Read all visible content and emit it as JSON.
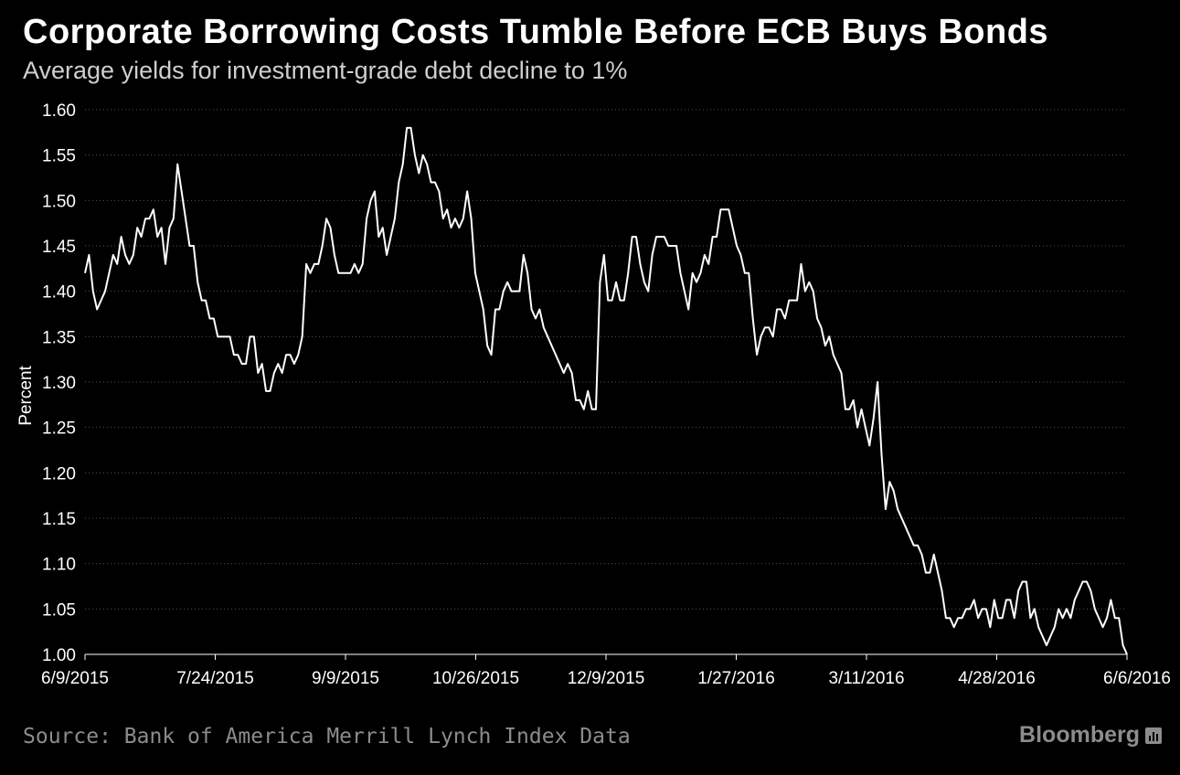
{
  "colors": {
    "background": "#000000",
    "line": "#ffffff",
    "grid": "#555555",
    "muted": "#8c8c8c"
  },
  "header": {
    "title": "Corporate Borrowing Costs Tumble Before ECB Buys Bonds",
    "subtitle": "Average yields for investment-grade debt decline to 1%"
  },
  "footer": {
    "source": "Source: Bank of America Merrill Lynch Index Data",
    "brand": "Bloomberg",
    "brand_icon": "bloomberg-terminal-icon"
  },
  "chart_data": {
    "type": "line",
    "title": "Corporate Borrowing Costs Tumble Before ECB Buys Bonds",
    "subtitle": "Average yields for investment-grade debt decline to 1%",
    "xlabel": "",
    "ylabel": "Percent",
    "ylim": [
      1.0,
      1.6
    ],
    "yticks": [
      "1.00",
      "1.05",
      "1.10",
      "1.15",
      "1.20",
      "1.25",
      "1.30",
      "1.35",
      "1.40",
      "1.45",
      "1.50",
      "1.55",
      "1.60"
    ],
    "xticks": [
      "6/9/2015",
      "7/24/2015",
      "9/9/2015",
      "10/26/2015",
      "12/9/2015",
      "1/27/2016",
      "3/11/2016",
      "4/28/2016",
      "6/6/2016"
    ],
    "grid": "horizontal dotted",
    "legend": "none",
    "series": [
      {
        "values": [
          1.42,
          1.44,
          1.4,
          1.38,
          1.39,
          1.4,
          1.42,
          1.44,
          1.43,
          1.46,
          1.44,
          1.43,
          1.44,
          1.47,
          1.46,
          1.48,
          1.48,
          1.49,
          1.46,
          1.47,
          1.43,
          1.47,
          1.48,
          1.54,
          1.51,
          1.48,
          1.45,
          1.45,
          1.41,
          1.39,
          1.39,
          1.37,
          1.37,
          1.35,
          1.35,
          1.35,
          1.35,
          1.33,
          1.33,
          1.32,
          1.32,
          1.35,
          1.35,
          1.31,
          1.32,
          1.29,
          1.29,
          1.31,
          1.32,
          1.31,
          1.33,
          1.33,
          1.32,
          1.33,
          1.35,
          1.43,
          1.42,
          1.43,
          1.43,
          1.45,
          1.48,
          1.47,
          1.44,
          1.42,
          1.42,
          1.42,
          1.42,
          1.43,
          1.42,
          1.43,
          1.48,
          1.5,
          1.51,
          1.46,
          1.47,
          1.44,
          1.46,
          1.48,
          1.52,
          1.54,
          1.58,
          1.58,
          1.55,
          1.53,
          1.55,
          1.54,
          1.52,
          1.52,
          1.51,
          1.48,
          1.49,
          1.47,
          1.48,
          1.47,
          1.48,
          1.51,
          1.48,
          1.42,
          1.4,
          1.38,
          1.34,
          1.33,
          1.38,
          1.38,
          1.4,
          1.41,
          1.4,
          1.4,
          1.4,
          1.44,
          1.42,
          1.38,
          1.37,
          1.38,
          1.36,
          1.35,
          1.34,
          1.33,
          1.32,
          1.31,
          1.32,
          1.31,
          1.28,
          1.28,
          1.27,
          1.29,
          1.27,
          1.27,
          1.41,
          1.44,
          1.39,
          1.39,
          1.41,
          1.39,
          1.39,
          1.42,
          1.46,
          1.46,
          1.43,
          1.41,
          1.4,
          1.44,
          1.46,
          1.46,
          1.46,
          1.45,
          1.45,
          1.45,
          1.42,
          1.4,
          1.38,
          1.42,
          1.41,
          1.42,
          1.44,
          1.43,
          1.46,
          1.46,
          1.49,
          1.49,
          1.49,
          1.47,
          1.45,
          1.44,
          1.42,
          1.42,
          1.37,
          1.33,
          1.35,
          1.36,
          1.36,
          1.35,
          1.38,
          1.38,
          1.37,
          1.39,
          1.39,
          1.39,
          1.43,
          1.4,
          1.41,
          1.4,
          1.37,
          1.36,
          1.34,
          1.35,
          1.33,
          1.32,
          1.31,
          1.27,
          1.27,
          1.28,
          1.25,
          1.27,
          1.25,
          1.23,
          1.26,
          1.3,
          1.22,
          1.16,
          1.19,
          1.18,
          1.16,
          1.15,
          1.14,
          1.13,
          1.12,
          1.12,
          1.11,
          1.09,
          1.09,
          1.11,
          1.09,
          1.07,
          1.04,
          1.04,
          1.03,
          1.04,
          1.04,
          1.05,
          1.05,
          1.06,
          1.04,
          1.05,
          1.05,
          1.03,
          1.06,
          1.04,
          1.04,
          1.06,
          1.06,
          1.04,
          1.07,
          1.08,
          1.08,
          1.04,
          1.05,
          1.03,
          1.02,
          1.01,
          1.02,
          1.03,
          1.05,
          1.04,
          1.05,
          1.04,
          1.06,
          1.07,
          1.08,
          1.08,
          1.07,
          1.05,
          1.04,
          1.03,
          1.04,
          1.06,
          1.04,
          1.04,
          1.01,
          1.0
        ]
      }
    ]
  }
}
